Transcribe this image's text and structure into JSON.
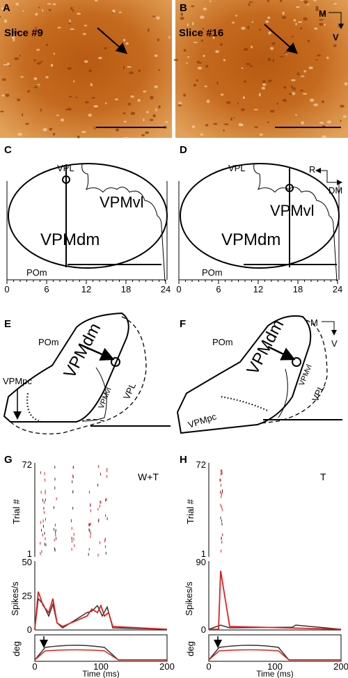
{
  "A": {
    "label": "A",
    "caption": "Slice #9"
  },
  "B": {
    "label": "B",
    "caption": "Slice #16",
    "orientation": [
      "M",
      "V"
    ]
  },
  "C": {
    "label": "C",
    "regions": [
      "VPL",
      "VPMvl",
      "VPMdm",
      "POm"
    ],
    "ticks": [
      0,
      6,
      12,
      18,
      24
    ]
  },
  "D": {
    "label": "D",
    "regions": [
      "VPL",
      "VPMvl",
      "VPMdm",
      "POm"
    ],
    "orientation": [
      "R",
      "DM"
    ],
    "ticks": [
      0,
      6,
      12,
      18,
      24
    ]
  },
  "E": {
    "label": "E",
    "regions": [
      "POm",
      "VPMdm",
      "VPMvl",
      "VPL",
      "VPMpc"
    ]
  },
  "F": {
    "label": "F",
    "orientation": [
      "M",
      "V"
    ],
    "regions": [
      "POm",
      "VPMdm",
      "VPMvl",
      "VPL",
      "VPMpc"
    ]
  },
  "G": {
    "label": "G",
    "condition": "W+T",
    "raster_y_label": "Trial #",
    "raster_ticks": [
      72,
      1
    ],
    "psth_y_label": "Spikes/s",
    "psth_ticks": [
      50,
      25,
      0
    ],
    "deg_label": "deg",
    "time_ticks": [
      0,
      100,
      200
    ],
    "x_label": "Time (ms)"
  },
  "H": {
    "label": "H",
    "condition": "T",
    "raster_y_label": "Trial #",
    "raster_ticks": [
      72,
      1
    ],
    "psth_y_label": "Spikes/s",
    "psth_ticks": [
      90,
      0
    ],
    "deg_label": "deg",
    "time_ticks": [
      0,
      100,
      200
    ],
    "x_label": "Time (ms)"
  }
}
